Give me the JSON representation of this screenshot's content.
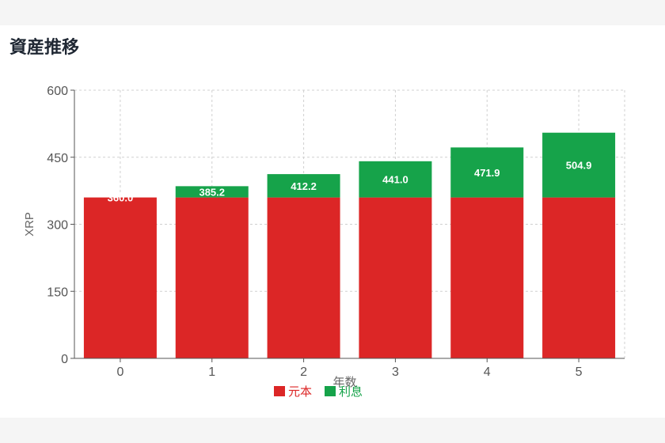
{
  "page": {
    "title": "資産推移"
  },
  "colors": {
    "principal": "#dc2626",
    "interest": "#16a34a",
    "grid": "#d0d0d0",
    "axis": "#555555"
  },
  "chart_data": {
    "type": "bar",
    "stacked": true,
    "categories": [
      "0",
      "1",
      "2",
      "3",
      "4",
      "5"
    ],
    "series": [
      {
        "name": "元本",
        "values": [
          360,
          360,
          360,
          360,
          360,
          360
        ]
      },
      {
        "name": "利息",
        "values": [
          0,
          25.2,
          52.2,
          81.0,
          111.9,
          144.9
        ]
      }
    ],
    "total_labels": [
      "360.0",
      "385.2",
      "412.2",
      "441.0",
      "471.9",
      "504.9"
    ],
    "totals": [
      360.0,
      385.2,
      412.2,
      441.0,
      471.9,
      504.9
    ],
    "xlabel": "年数",
    "ylabel": "XRP",
    "ylim": [
      0,
      600
    ],
    "yticks": [
      "0",
      "150",
      "300",
      "450",
      "600"
    ],
    "ytick_values": [
      0,
      150,
      300,
      450,
      600
    ],
    "grid": true,
    "legend_position": "bottom"
  }
}
